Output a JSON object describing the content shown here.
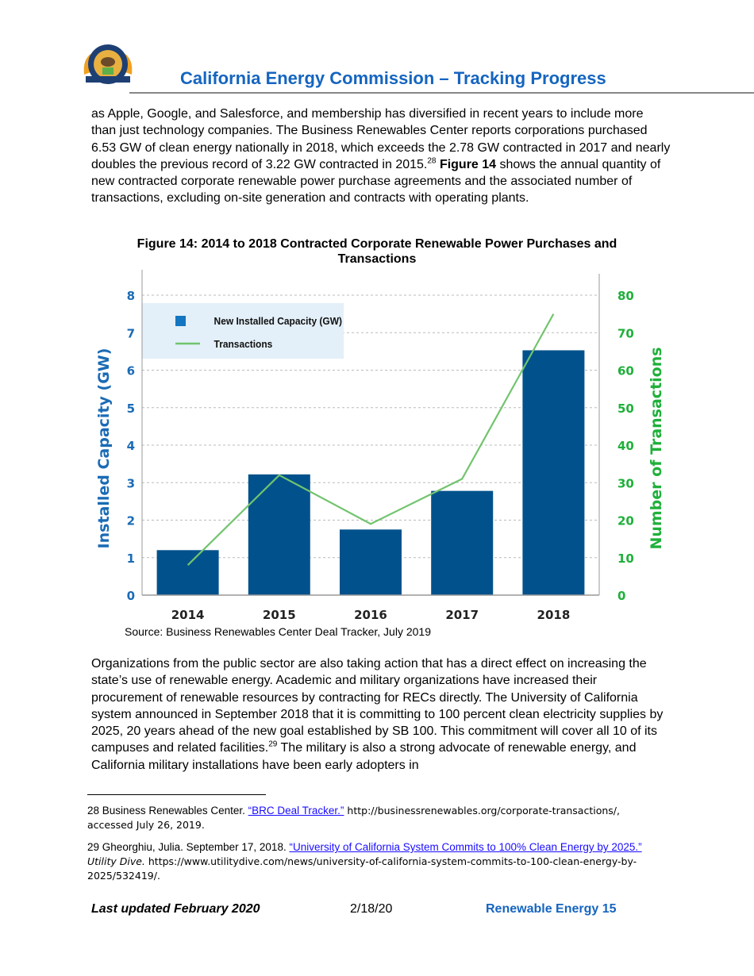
{
  "header": {
    "title": "California Energy Commission – Tracking Progress",
    "logo_text": "STATE OF CALIFORNIA ENERGY COMMISSION"
  },
  "body": {
    "p1": [
      "as Apple, Google, and Salesforce, and membership has diversified in recent years to include more than just technology companies. The Business Renewables Center reports corporations purchased 6.53 GW of clean energy nationally in 2018, which exceeds the 2.78 GW contracted in 2017 and nearly doubles the previous record of 3.22 GW contracted in 2015.",
      "28",
      " ",
      "Figure 14",
      " shows the annual quantity of new contracted corporate renewable power purchase agreements and the associated number of transactions, excluding on-site generation and contracts with operating plants."
    ],
    "p2": [
      "Organizations from the public sector are also taking action that has a direct effect on increasing the state’s use of renewable energy. Academic and military organizations have increased their procurement of renewable resources by contracting for RECs directly. The University of California system announced in September 2018 that it is committing to 100 percent clean electricity supplies by 2025, 20 years ahead of the new goal established by SB 100. This commitment will cover all 10 of its campuses and related facilities.",
      "29",
      " The military is also a strong advocate of renewable energy, and California military installations have been early adopters in"
    ]
  },
  "figure": {
    "caption": "Figure 14: 2014 to 2018 Contracted Corporate Renewable Power Purchases and Transactions",
    "source": "Source: Business Renewables Center Deal Tracker, July 2019"
  },
  "chart_data": {
    "type": "bar",
    "categories": [
      "2014",
      "2015",
      "2016",
      "2017",
      "2018"
    ],
    "series": [
      {
        "name": "New Installed Capacity (GW)",
        "type": "bar",
        "axis": "left",
        "values": [
          1.2,
          3.22,
          1.75,
          2.78,
          6.53
        ],
        "color": "#01528c"
      },
      {
        "name": "Transactions",
        "type": "line",
        "axis": "right",
        "values": [
          8,
          32,
          19,
          31,
          75
        ],
        "color": "#72c46e"
      }
    ],
    "ylabel": "Installed Capacity (GW)",
    "y2label": "Number of Transactions",
    "ylim": [
      0,
      8
    ],
    "y2lim": [
      0,
      80
    ],
    "yticks": [
      "0",
      "1",
      "2",
      "3",
      "4",
      "5",
      "6",
      "7",
      "8"
    ],
    "y2ticks": [
      "0",
      "10",
      "20",
      "30",
      "40",
      "50",
      "60",
      "70",
      "80"
    ],
    "grid": true,
    "legend": "top-left",
    "colors": {
      "left_axis": "#1a6bb5",
      "right_axis": "#1fb03a",
      "legend_bg": "#e3f0f9"
    }
  },
  "footnotes": [
    {
      "num": "28",
      "pre": "Business Renewables Center. ",
      "link": "“BRC Deal Tracker.”",
      "post": " http://businessrenewables.org/corporate-transactions/, accessed July 26, 2019."
    },
    {
      "num": "29",
      "pre": "Gheorghiu, Julia. September 17, 2018. ",
      "link": "“University of California System Commits to 100% Clean Energy by 2025.”",
      "italic": "Utility Dive.",
      "post": " https://www.utilitydive.com/news/university-of-california-system-commits-to-100-clean-energy-by-2025/532419/."
    }
  ],
  "footer": {
    "left": "Last updated February 2020",
    "mid": "2/18/20",
    "right": "Renewable Energy 15"
  }
}
